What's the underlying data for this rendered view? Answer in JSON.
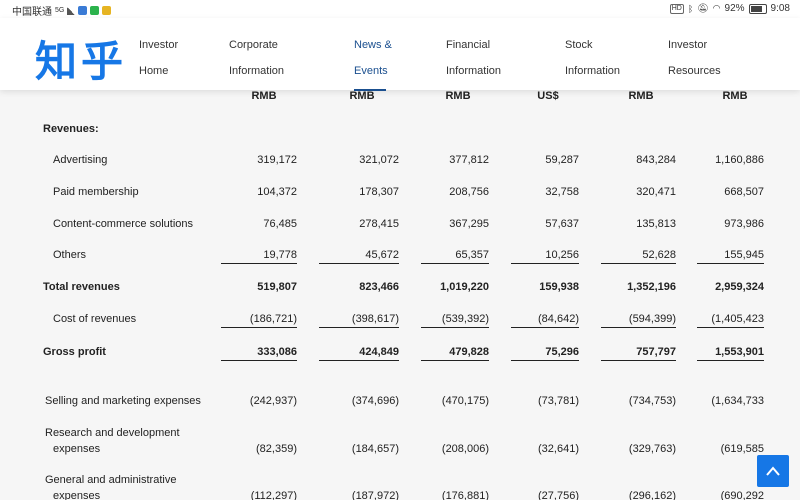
{
  "status_bar": {
    "carrier": "中国联通",
    "network": "5G",
    "hd": "HD",
    "battery": "92%",
    "time": "9:08"
  },
  "header": {
    "logo": "知乎",
    "nav": [
      {
        "line1": "Investor",
        "line2": "Home"
      },
      {
        "line1": "Corporate",
        "line2": "Information"
      },
      {
        "line1": "News &",
        "line2": "Events"
      },
      {
        "line1": "Financial",
        "line2": "Information"
      },
      {
        "line1": "Stock",
        "line2": "Information"
      },
      {
        "line1": "Investor",
        "line2": "Resources"
      }
    ]
  },
  "table": {
    "currency_headers": [
      "RMB",
      "RMB",
      "RMB",
      "US$",
      "RMB",
      "RMB"
    ],
    "revenues_label": "Revenues:",
    "rows": [
      {
        "label": "Advertising",
        "values": [
          "319,172",
          "321,072",
          "377,812",
          "59,287",
          "843,284",
          "1,160,886"
        ]
      },
      {
        "label": "Paid membership",
        "values": [
          "104,372",
          "178,307",
          "208,756",
          "32,758",
          "320,471",
          "668,507"
        ]
      },
      {
        "label": "Content-commerce solutions",
        "values": [
          "76,485",
          "278,415",
          "367,295",
          "57,637",
          "135,813",
          "973,986"
        ]
      },
      {
        "label": "Others",
        "values": [
          "19,778",
          "45,672",
          "65,357",
          "10,256",
          "52,628",
          "155,945"
        ]
      },
      {
        "label": "Total revenues",
        "values": [
          "519,807",
          "823,466",
          "1,019,220",
          "159,938",
          "1,352,196",
          "2,959,324"
        ]
      },
      {
        "label": "Cost of revenues",
        "values": [
          "(186,721)",
          "(398,617)",
          "(539,392)",
          "(84,642)",
          "(594,399)",
          "(1,405,423"
        ]
      },
      {
        "label": "Gross profit",
        "values": [
          "333,086",
          "424,849",
          "479,828",
          "75,296",
          "757,797",
          "1,553,901"
        ]
      },
      {
        "label": "Selling and marketing expenses",
        "values": [
          "(242,937)",
          "(374,696)",
          "(470,175)",
          "(73,781)",
          "(734,753)",
          "(1,634,733"
        ]
      },
      {
        "label1": "Research and development",
        "label2": "expenses",
        "values": [
          "(82,359)",
          "(184,657)",
          "(208,006)",
          "(32,641)",
          "(329,763)",
          "(619,585"
        ]
      },
      {
        "label1": "General and administrative",
        "label2": "expenses",
        "values": [
          "(112,297)",
          "(187,972)",
          "(176,881)",
          "(27,756)",
          "(296,162)",
          "(690,292"
        ]
      }
    ]
  }
}
